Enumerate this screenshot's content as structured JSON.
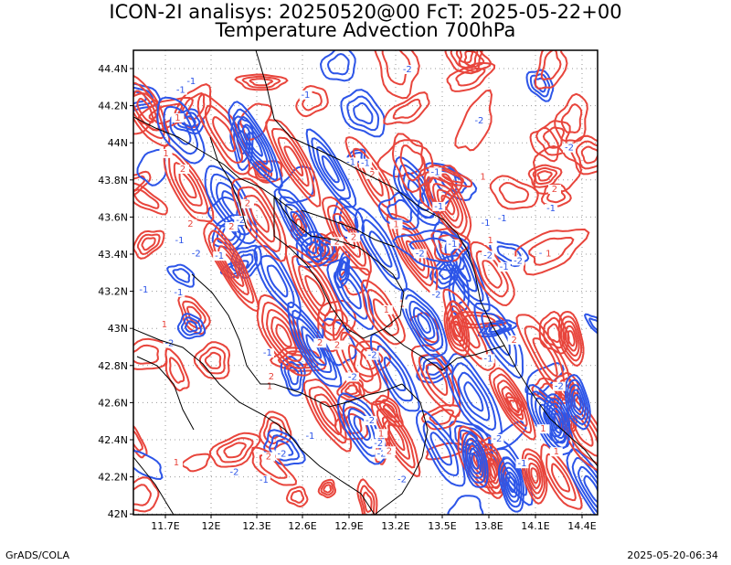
{
  "title_line1": "ICON-2I analisys: 20250520@00 FcT: 2025-05-22+00",
  "title_line2": "Temperature Advection 700hPa",
  "footer_left": "GrADS/COLA",
  "footer_right": "2025-05-20-06:34",
  "colors": {
    "warm_advection": "#e8453c",
    "cold_advection": "#2d55e8",
    "grid": "#9a9a9a",
    "border": "#000000"
  },
  "map": {
    "lon_labels": [
      "11.7E",
      "12E",
      "12.3E",
      "12.6E",
      "12.9E",
      "13.2E",
      "13.5E",
      "13.8E",
      "14.1E",
      "14.4E"
    ],
    "lat_labels": [
      "44.4N",
      "44.2N",
      "44N",
      "43.8N",
      "43.6N",
      "43.4N",
      "43.2N",
      "43N",
      "42.8N",
      "42.6N",
      "42.4N",
      "42.2N",
      "42N"
    ],
    "contour_labels": [
      "-1",
      "1",
      "-2",
      "2"
    ]
  }
}
